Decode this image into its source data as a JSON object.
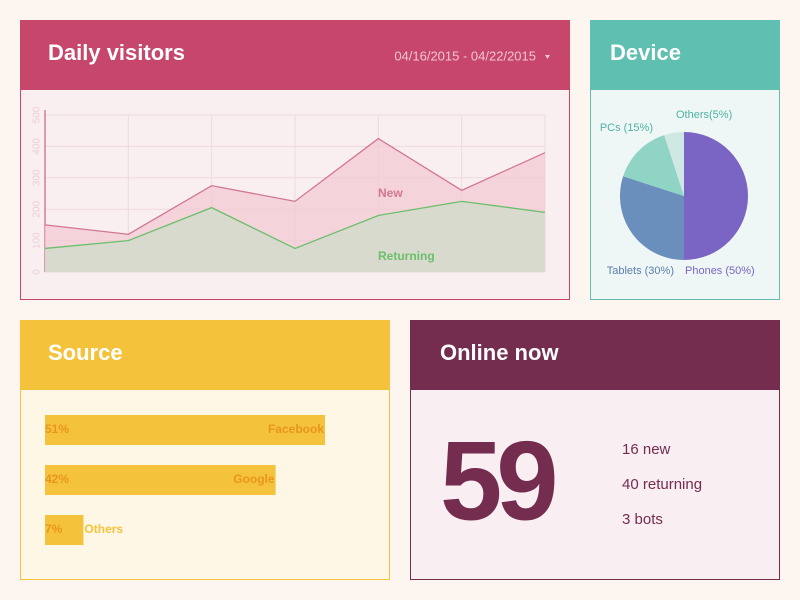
{
  "chart_data": [
    {
      "type": "line",
      "title": "Daily visitors",
      "date_range": "04/16/2015 - 04/22/2015",
      "categories": [
        null,
        null,
        null,
        null,
        null,
        null,
        null
      ],
      "series": [
        {
          "name": "New",
          "color": "#d27791",
          "values": [
            150,
            120,
            275,
            225,
            425,
            260,
            380
          ]
        },
        {
          "name": "Returning",
          "color": "#6bbf6b",
          "values": [
            75,
            100,
            205,
            75,
            180,
            225,
            190
          ]
        }
      ],
      "ylim": [
        0,
        500
      ],
      "yticks": [
        0,
        100,
        200,
        300,
        400,
        500
      ],
      "grid": true
    },
    {
      "type": "pie",
      "title": "Device",
      "categories": [
        "Phones",
        "Tablets",
        "PCs",
        "Others"
      ],
      "values": [
        50,
        30,
        15,
        5
      ],
      "value_labels": [
        "Phones (50%)",
        "Tablets (30%)",
        "PCs (15%)",
        "Others(5%)"
      ],
      "colors": [
        "#7a64c4",
        "#6a8fbd",
        "#8fd4c4",
        "#cfe8e3"
      ]
    },
    {
      "type": "bar",
      "title": "Source",
      "orientation": "horizontal",
      "categories": [
        "Facebook",
        "Google",
        "Others"
      ],
      "values": [
        51,
        42,
        7
      ],
      "value_labels": [
        "51%",
        "42%",
        "7%"
      ],
      "color": "#f5c23b"
    }
  ],
  "online": {
    "title": "Online now",
    "count": "59",
    "details": [
      "16 new",
      "40 returning",
      "3 bots"
    ]
  }
}
